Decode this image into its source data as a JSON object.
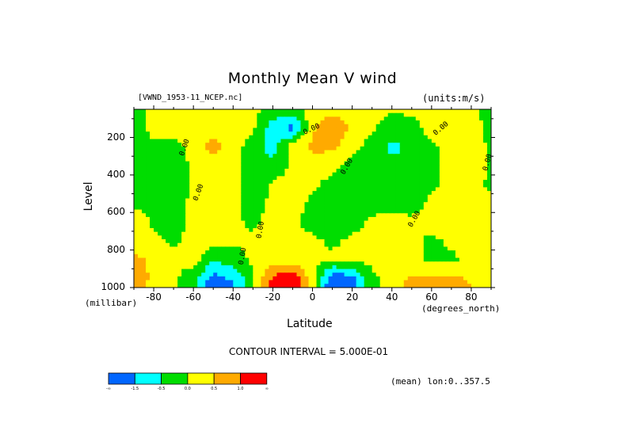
{
  "chart_data": {
    "type": "heatmap",
    "title": "Monthly Mean V wind",
    "dataset_label": "[VWND_1953-11_NCEP.nc]",
    "units_label": "(units:m/s)",
    "xlabel": "Latitude",
    "x_units": "(degrees_north)",
    "ylabel": "Level",
    "y_units": "(millibar)",
    "xlim": [
      -90,
      90
    ],
    "ylim": [
      1000,
      50
    ],
    "y_inverted": true,
    "x_ticks": [
      -80,
      -60,
      -40,
      -20,
      0,
      20,
      40,
      60,
      80
    ],
    "y_ticks": [
      200,
      400,
      600,
      800,
      1000
    ],
    "contour_interval_text": "CONTOUR INTERVAL = 5.000E-01",
    "mean_text": "(mean) lon:0..357.5",
    "contour_labels": [
      "0.00"
    ],
    "colorbar": {
      "colors": [
        "#0066ff",
        "#00ffff",
        "#00dd00",
        "#ffff00",
        "#ffaa00",
        "#ff0000"
      ],
      "labels": [
        "-∞",
        "-1.5",
        "-0.5",
        "0.0",
        "0.5",
        "1.0",
        "∞"
      ]
    },
    "field": {
      "lat": [
        -90,
        -80,
        -70,
        -60,
        -50,
        -40,
        -30,
        -20,
        -10,
        0,
        10,
        20,
        30,
        40,
        50,
        60,
        70,
        80,
        90
      ],
      "levels": [
        50,
        150,
        250,
        350,
        450,
        550,
        650,
        750,
        850,
        950,
        1000
      ],
      "values": [
        [
          -0.2,
          0.2,
          0.2,
          0.2,
          0.1,
          0.1,
          0.1,
          -0.1,
          -0.2,
          0.2,
          0.2,
          0.2,
          0.1,
          0.1,
          0.1,
          0.1,
          0.1,
          0.1,
          -0.2
        ],
        [
          -0.3,
          0.2,
          0.2,
          0.3,
          0.2,
          0.2,
          0.1,
          -0.8,
          -1.2,
          0.4,
          1.1,
          0.3,
          0.1,
          -0.3,
          -0.2,
          0.2,
          0.3,
          0.3,
          -0.2
        ],
        [
          -0.4,
          -0.1,
          -0.2,
          0.2,
          0.7,
          0.2,
          -0.2,
          -0.7,
          0.3,
          0.6,
          0.6,
          0.2,
          -0.2,
          -0.6,
          -0.4,
          -0.1,
          0.2,
          0.3,
          -0.1
        ],
        [
          -0.3,
          -0.3,
          -0.3,
          0.1,
          0.3,
          0.2,
          -0.3,
          -0.4,
          0.1,
          0.3,
          0.2,
          -0.2,
          -0.3,
          -0.4,
          -0.4,
          -0.2,
          0.2,
          0.3,
          -0.1
        ],
        [
          -0.2,
          -0.2,
          -0.3,
          0.1,
          0.2,
          0.2,
          -0.3,
          0.1,
          0.2,
          0.1,
          -0.2,
          -0.3,
          -0.3,
          -0.3,
          -0.3,
          -0.1,
          0.2,
          0.2,
          -0.1
        ],
        [
          -0.1,
          -0.1,
          -0.2,
          0.1,
          0.2,
          0.1,
          -0.2,
          0.1,
          0.2,
          -0.1,
          -0.2,
          -0.3,
          -0.2,
          -0.1,
          -0.2,
          0.1,
          0.2,
          0.2,
          0.1
        ],
        [
          0.3,
          -0.1,
          -0.2,
          0.1,
          0.2,
          0.1,
          -0.1,
          0.2,
          0.1,
          -0.2,
          -0.3,
          -0.2,
          0.1,
          0.1,
          0.1,
          0.2,
          0.2,
          0.2,
          0.1
        ],
        [
          0.3,
          0.1,
          -0.1,
          0.2,
          0.2,
          0.1,
          0.1,
          0.2,
          0.2,
          0.1,
          -0.1,
          0.1,
          0.1,
          0.2,
          0.1,
          -0.1,
          0.1,
          0.1,
          0.1
        ],
        [
          0.6,
          0.4,
          0.1,
          0.2,
          -0.4,
          -0.3,
          0.1,
          0.3,
          0.2,
          0.1,
          0.1,
          0.2,
          0.1,
          0.2,
          0.1,
          -0.1,
          -0.1,
          0.2,
          0.1
        ],
        [
          0.8,
          0.4,
          0.1,
          -0.3,
          -1.2,
          -0.9,
          -0.1,
          1.1,
          1.4,
          0.2,
          -1.4,
          -1.2,
          -0.1,
          0.2,
          0.6,
          0.6,
          0.6,
          0.4,
          0.2
        ],
        [
          0.8,
          0.3,
          0.1,
          -0.4,
          -1.6,
          -1.1,
          -0.1,
          1.3,
          1.6,
          0.2,
          -1.6,
          -1.4,
          -0.1,
          0.2,
          0.7,
          0.6,
          0.7,
          0.5,
          0.2
        ]
      ]
    }
  }
}
